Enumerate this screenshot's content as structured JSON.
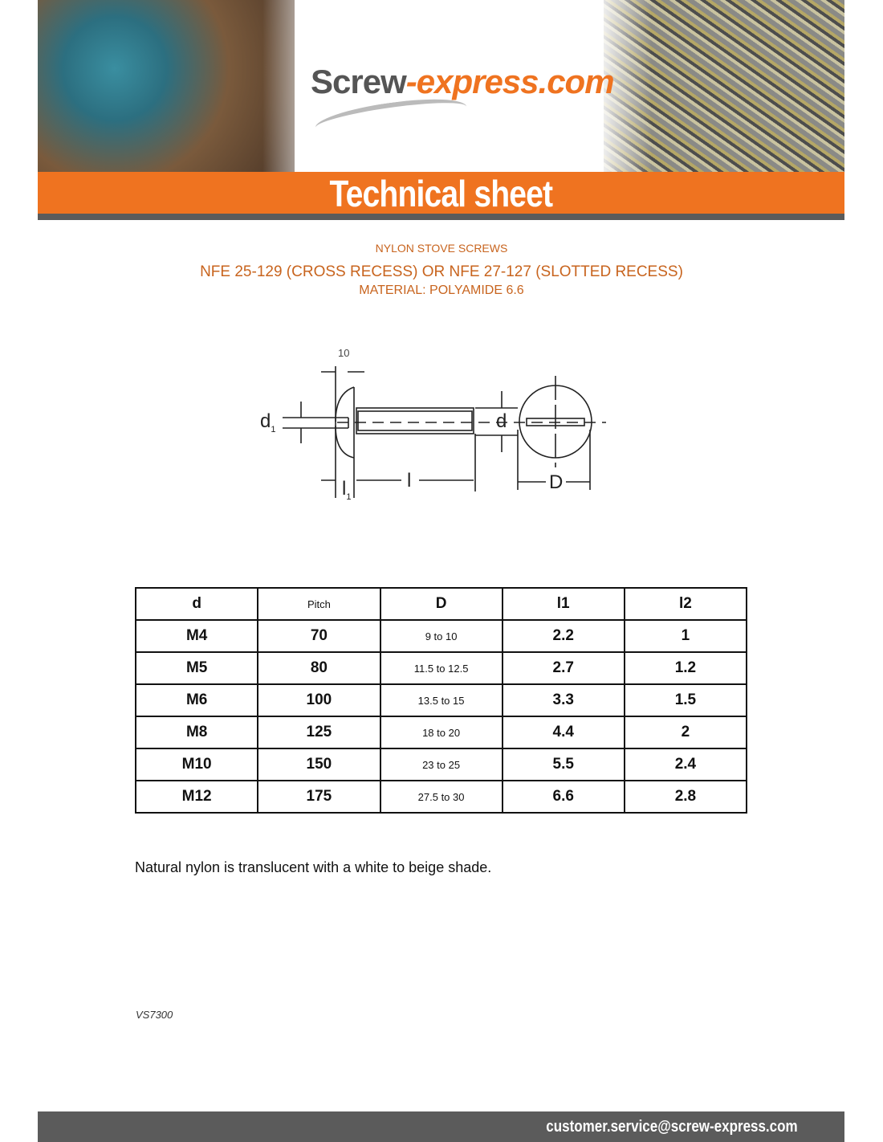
{
  "header": {
    "logo_part1": "Screw",
    "logo_part2": "-express.com",
    "banner_title": "Technical sheet"
  },
  "titles": {
    "product": "NYLON STOVE SCREWS",
    "standard": "NFE 25-129 (CROSS RECESS) OR NFE 27-127 (SLOTTED RECESS)",
    "material": "MATERIAL: POLYAMIDE 6.6"
  },
  "diagram": {
    "top_label": "10",
    "d1": "d",
    "d1_sub": "1",
    "d": "d",
    "l": "l",
    "l1": "l",
    "l1_sub": "1",
    "D": "D"
  },
  "table": {
    "headers": [
      "d",
      "Pitch",
      "D",
      "l1",
      "l2"
    ],
    "rows": [
      [
        "M4",
        "70",
        "9 to 10",
        "2.2",
        "1"
      ],
      [
        "M5",
        "80",
        "11.5 to 12.5",
        "2.7",
        "1.2"
      ],
      [
        "M6",
        "100",
        "13.5 to 15",
        "3.3",
        "1.5"
      ],
      [
        "M8",
        "125",
        "18 to 20",
        "4.4",
        "2"
      ],
      [
        "M10",
        "150",
        "23 to 25",
        "5.5",
        "2.4"
      ],
      [
        "M12",
        "175",
        "27.5 to 30",
        "6.6",
        "2.8"
      ]
    ]
  },
  "note": "Natural nylon is translucent with a white to beige shade.",
  "reference": "VS7300",
  "footer": {
    "email": "customer.service@screw-express.com"
  },
  "colors": {
    "accent": "#ef7320",
    "title_text": "#c8641e",
    "bar": "#5b5b5b"
  }
}
